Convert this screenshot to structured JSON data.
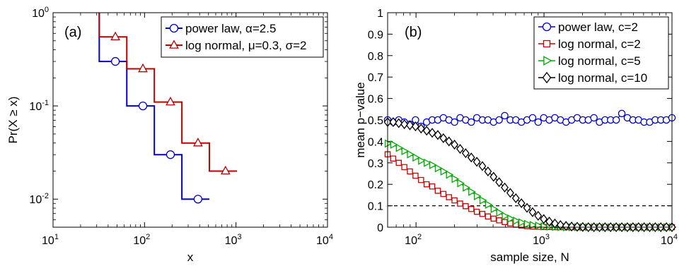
{
  "chart_data": [
    {
      "type": "line",
      "panel_label": "(a)",
      "xlabel": "x",
      "ylabel": "Pr(X ≥ x)",
      "xscale": "log",
      "yscale": "log",
      "xlim": [
        10,
        10000
      ],
      "ylim": [
        0.005,
        1
      ],
      "x_ticks": [
        {
          "base": "10",
          "exp": "1"
        },
        {
          "base": "10",
          "exp": "2"
        },
        {
          "base": "10",
          "exp": "3"
        },
        {
          "base": "10",
          "exp": "4"
        }
      ],
      "y_ticks": [
        {
          "base": "10",
          "exp": "-2"
        },
        {
          "base": "10",
          "exp": "-1"
        },
        {
          "base": "10",
          "exp": "0"
        }
      ],
      "legend_position": "top-right",
      "series": [
        {
          "name": "power law, α=2.5",
          "color": "#0000cc",
          "marker": "circle",
          "step_x": [
            32,
            64,
            128,
            256,
            512
          ],
          "step_y": [
            0.3,
            0.1,
            0.03,
            0.01
          ],
          "marker_points": [
            [
              48,
              0.3
            ],
            [
              96,
              0.1
            ],
            [
              192,
              0.03
            ],
            [
              384,
              0.01
            ]
          ]
        },
        {
          "name": "log normal, μ=0.3, σ=2",
          "color": "#bb0000",
          "marker": "triangle",
          "step_x": [
            32,
            64,
            128,
            256,
            512,
            1024
          ],
          "step_y": [
            0.55,
            0.25,
            0.11,
            0.04,
            0.02
          ],
          "marker_points": [
            [
              48,
              0.55
            ],
            [
              96,
              0.25
            ],
            [
              192,
              0.11
            ],
            [
              384,
              0.04
            ],
            [
              768,
              0.02
            ]
          ]
        }
      ]
    },
    {
      "type": "line",
      "panel_label": "(b)",
      "xlabel": "sample size, N",
      "ylabel": "mean p−value",
      "xscale": "log",
      "xlim": [
        60,
        10000
      ],
      "ylim": [
        0,
        1
      ],
      "x_ticks": [
        {
          "value": 100,
          "base": "10",
          "exp": "2"
        },
        {
          "value": 1000,
          "base": "10",
          "exp": "3"
        },
        {
          "value": 10000,
          "base": "10",
          "exp": "4"
        }
      ],
      "y_ticks": [
        "0",
        "0.1",
        "0.2",
        "0.3",
        "0.4",
        "0.5",
        "0.6",
        "0.7",
        "0.8",
        "0.9",
        "1"
      ],
      "reference_line": 0.1,
      "legend_position": "top-right",
      "series": [
        {
          "name": "power law, c=2",
          "color": "#0000cc",
          "marker": "circle",
          "y": [
            0.5,
            0.49,
            0.5,
            0.49,
            0.48,
            0.5,
            0.47,
            0.49,
            0.5,
            0.5,
            0.51,
            0.5,
            0.49,
            0.51,
            0.5,
            0.49,
            0.51,
            0.5,
            0.5,
            0.49,
            0.5,
            0.52,
            0.5,
            0.5,
            0.49,
            0.5,
            0.51,
            0.49,
            0.51,
            0.5,
            0.51,
            0.5,
            0.49,
            0.5,
            0.51,
            0.5,
            0.5,
            0.51,
            0.49,
            0.5,
            0.5,
            0.5,
            0.53,
            0.51,
            0.5,
            0.5,
            0.49,
            0.49,
            0.5,
            0.5,
            0.5,
            0.51
          ]
        },
        {
          "name": "log normal, c=2",
          "color": "#cc0000",
          "marker": "square",
          "y": [
            0.34,
            0.32,
            0.3,
            0.28,
            0.26,
            0.24,
            0.22,
            0.2,
            0.19,
            0.17,
            0.155,
            0.14,
            0.125,
            0.11,
            0.098,
            0.085,
            0.072,
            0.062,
            0.05,
            0.04,
            0.032,
            0.024,
            0.018,
            0.012,
            0.008,
            0.005,
            0.003,
            0.002,
            0.001,
            0.001,
            0,
            0,
            0,
            0,
            0,
            0,
            0,
            0,
            0,
            0,
            0,
            0,
            0,
            0,
            0,
            0,
            0,
            0,
            0,
            0,
            0,
            0
          ]
        },
        {
          "name": "log normal, c=5",
          "color": "#00aa00",
          "marker": "triangle-right",
          "y": [
            0.39,
            0.385,
            0.37,
            0.355,
            0.34,
            0.325,
            0.31,
            0.3,
            0.29,
            0.275,
            0.26,
            0.245,
            0.225,
            0.205,
            0.185,
            0.165,
            0.145,
            0.125,
            0.105,
            0.085,
            0.068,
            0.052,
            0.04,
            0.03,
            0.022,
            0.015,
            0.01,
            0.007,
            0.004,
            0.003,
            0.002,
            0.001,
            0,
            0,
            0,
            0,
            0,
            0,
            0,
            0,
            0,
            0,
            0,
            0,
            0,
            0,
            0,
            0,
            0,
            0,
            0,
            0
          ]
        },
        {
          "name": "log normal, c=10",
          "color": "#000000",
          "marker": "diamond",
          "y": [
            0.49,
            0.49,
            0.485,
            0.48,
            0.475,
            0.47,
            0.46,
            0.45,
            0.44,
            0.43,
            0.415,
            0.4,
            0.385,
            0.365,
            0.345,
            0.325,
            0.305,
            0.285,
            0.26,
            0.235,
            0.21,
            0.185,
            0.16,
            0.135,
            0.112,
            0.09,
            0.07,
            0.053,
            0.038,
            0.026,
            0.017,
            0.01,
            0.006,
            0.003,
            0.002,
            0.001,
            0,
            0,
            0,
            0,
            0,
            0,
            0,
            0,
            0,
            0,
            0,
            0,
            0,
            0,
            0,
            0
          ]
        }
      ]
    }
  ]
}
